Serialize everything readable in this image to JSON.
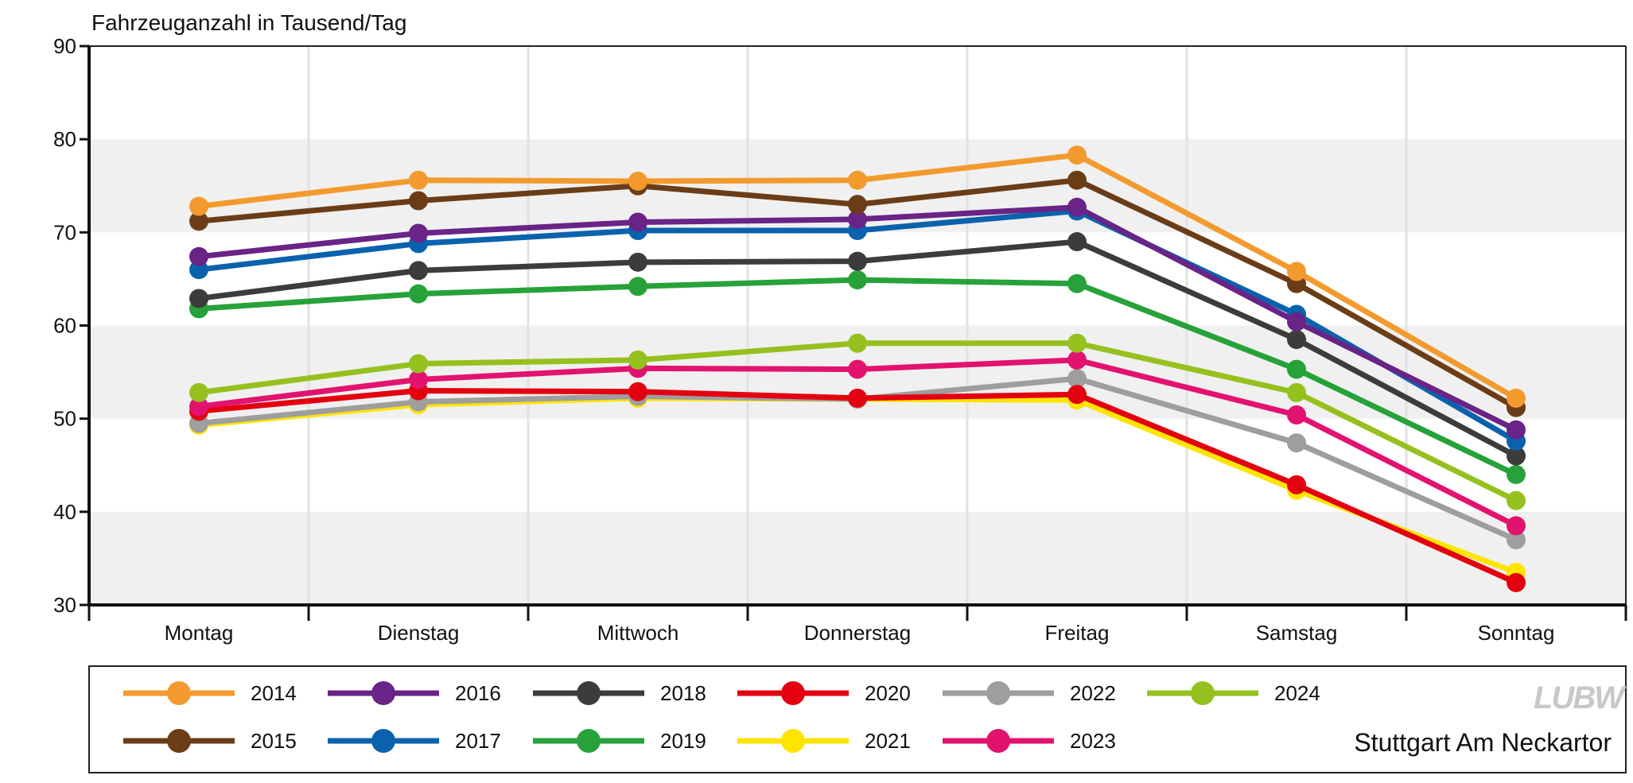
{
  "chart_data": {
    "type": "line",
    "ylabel": "Fahrzeuganzahl in Tausend/Tag",
    "categories": [
      "Montag",
      "Dienstag",
      "Mittwoch",
      "Donnerstag",
      "Freitag",
      "Samstag",
      "Sonntag"
    ],
    "ylim": [
      30,
      90
    ],
    "yticks": [
      30,
      40,
      50,
      60,
      70,
      80,
      90
    ],
    "grid": true,
    "legend_position": "bottom",
    "station": "Stuttgart Am Neckartor",
    "logo": "LUBW",
    "series": [
      {
        "name": "2014",
        "color": "#f39a2e",
        "values": [
          72.8,
          75.6,
          75.5,
          75.6,
          78.3,
          65.8,
          52.2
        ]
      },
      {
        "name": "2015",
        "color": "#6b3d17",
        "values": [
          71.2,
          73.4,
          75.0,
          73.0,
          75.6,
          64.5,
          51.2
        ]
      },
      {
        "name": "2016",
        "color": "#6a2386",
        "values": [
          67.4,
          69.9,
          71.1,
          71.4,
          72.7,
          60.4,
          48.8
        ]
      },
      {
        "name": "2017",
        "color": "#0a62ad",
        "values": [
          66.0,
          68.8,
          70.2,
          70.2,
          72.3,
          61.2,
          47.6
        ]
      },
      {
        "name": "2018",
        "color": "#3c3c3c",
        "values": [
          62.9,
          65.9,
          66.8,
          66.9,
          69.0,
          58.5,
          46.0
        ]
      },
      {
        "name": "2019",
        "color": "#27a23a",
        "values": [
          61.8,
          63.4,
          64.2,
          64.9,
          64.5,
          55.3,
          44.0
        ]
      },
      {
        "name": "2020",
        "color": "#e3000f",
        "values": [
          50.8,
          53.0,
          52.9,
          52.2,
          52.6,
          42.9,
          32.4
        ]
      },
      {
        "name": "2021",
        "color": "#ffe400",
        "values": [
          49.3,
          51.5,
          52.2,
          52.1,
          52.0,
          42.3,
          33.5
        ]
      },
      {
        "name": "2022",
        "color": "#9e9e9e",
        "values": [
          49.5,
          51.8,
          52.4,
          52.1,
          54.3,
          47.4,
          37.0
        ]
      },
      {
        "name": "2023",
        "color": "#e2136f",
        "values": [
          51.3,
          54.2,
          55.4,
          55.3,
          56.3,
          50.4,
          38.5
        ]
      },
      {
        "name": "2024",
        "color": "#95c11f",
        "values": [
          52.8,
          55.9,
          56.3,
          58.1,
          58.1,
          52.8,
          41.2
        ]
      }
    ],
    "legend_order": [
      "2014",
      "2016",
      "2018",
      "2020",
      "2022",
      "2024",
      "2015",
      "2017",
      "2019",
      "2021",
      "2023"
    ],
    "draw_order": [
      "2021",
      "2022",
      "2020",
      "2023",
      "2024",
      "2019",
      "2018",
      "2017",
      "2016",
      "2015",
      "2014"
    ]
  }
}
